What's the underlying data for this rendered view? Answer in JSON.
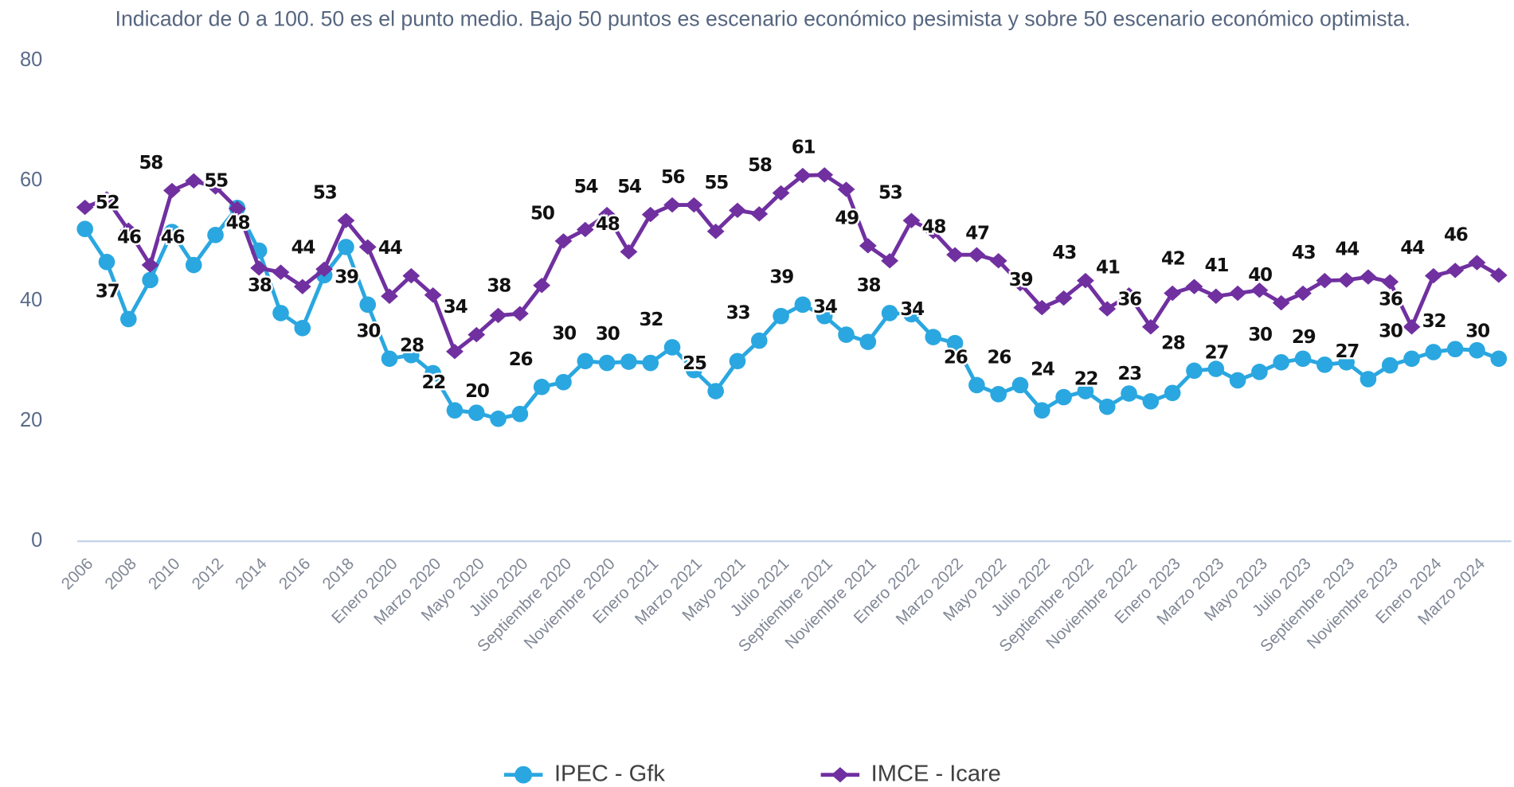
{
  "chart_data": {
    "type": "line",
    "subtitle": "Indicador de 0 a 100. 50 es el punto medio. Bajo 50 puntos es escenario económico pesimista y sobre 50 escenario económico optimista.",
    "categories": [
      "2006",
      null,
      "2008",
      null,
      "2010",
      null,
      "2012",
      null,
      "2014",
      null,
      "2016",
      null,
      "2018",
      null,
      "Enero 2020",
      null,
      "Marzo 2020",
      null,
      "Mayo 2020",
      null,
      "Julio 2020",
      null,
      "Septiembre 2020",
      null,
      "Noviembre 2020",
      null,
      "Enero 2021",
      null,
      "Marzo 2021",
      null,
      "Mayo 2021",
      null,
      "Julio 2021",
      null,
      "Septiembre 2021",
      null,
      "Noviembre 2021",
      null,
      "Enero 2022",
      null,
      "Marzo 2022",
      null,
      "Mayo 2022",
      null,
      "Julio 2022",
      null,
      "Septiembre 2022",
      null,
      "Noviembre 2022",
      null,
      "Enero 2023",
      null,
      "Marzo 2023",
      null,
      "Mayo 2023",
      null,
      "Julio 2023",
      null,
      "Septiembre 2023",
      null,
      "Noviembre 2023",
      null,
      "Enero 2024",
      null,
      "Marzo 2024",
      null
    ],
    "series": [
      {
        "name": "IPEC - Gfk",
        "color": "#2aa7e0",
        "marker": "circle",
        "values": [
          52,
          46.5,
          37,
          43.5,
          51.5,
          46,
          51,
          55.5,
          48.4,
          38,
          35.5,
          44.3,
          49,
          39.4,
          30.4,
          31,
          28,
          21.8,
          21.4,
          20.4,
          21.2,
          25.7,
          26.5,
          30,
          29.7,
          29.9,
          29.7,
          32.3,
          28.5,
          25,
          30,
          33.4,
          37.5,
          39.4,
          37.5,
          34.4,
          33.2,
          38,
          37.8,
          34,
          33,
          26,
          24.5,
          26,
          21.8,
          24,
          25,
          22.4,
          24.6,
          23.3,
          24.7,
          28.4,
          28.7,
          26.8,
          28.2,
          29.8,
          30.4,
          29.4,
          29.8,
          27,
          29.3,
          30.4,
          31.5,
          32,
          31.8,
          30.4
        ],
        "value_labels": [
          null,
          null,
          "37",
          null,
          null,
          "46",
          null,
          null,
          "48",
          "38",
          null,
          "44",
          null,
          "39",
          "30",
          null,
          "28",
          "22",
          null,
          "20",
          null,
          "26",
          null,
          "30",
          null,
          "30",
          null,
          "32",
          null,
          "25",
          null,
          "33",
          null,
          "39",
          null,
          "34",
          null,
          "38",
          null,
          "34",
          null,
          "26",
          null,
          "26",
          null,
          "24",
          null,
          "22",
          null,
          "23",
          null,
          "28",
          null,
          "27",
          null,
          "30",
          null,
          "29",
          null,
          "27",
          null,
          "30",
          null,
          "32",
          null,
          "30"
        ]
      },
      {
        "name": "IMCE - Icare",
        "color": "#7030a0",
        "marker": "diamond",
        "values": [
          55.6,
          57,
          51.8,
          46,
          58.4,
          60,
          59,
          55.4,
          45.5,
          44.8,
          42.4,
          45.3,
          53.4,
          49,
          40.8,
          44.2,
          41,
          31.6,
          34.4,
          37.6,
          37.9,
          42.6,
          50,
          51.9,
          54.4,
          48.2,
          54.4,
          56,
          56,
          51.6,
          55.1,
          54.5,
          58,
          60.9,
          61,
          58.6,
          49.2,
          46.7,
          53.4,
          51.6,
          47.7,
          47.7,
          46.7,
          42.9,
          38.9,
          40.5,
          43.4,
          38.7,
          41,
          35.7,
          41.3,
          42.4,
          40.8,
          41.3,
          41.8,
          39.7,
          41.3,
          43.4,
          43.5,
          44,
          43.2,
          35.7,
          44.2,
          45.1,
          46.4,
          44.3
        ],
        "value_labels": [
          null,
          null,
          "52",
          "46",
          "58",
          null,
          null,
          "55",
          null,
          null,
          null,
          null,
          "53",
          null,
          null,
          "44",
          null,
          null,
          "34",
          null,
          "38",
          null,
          "50",
          null,
          "54",
          "48",
          "54",
          null,
          "56",
          null,
          "55",
          null,
          "58",
          null,
          "61",
          null,
          "49",
          null,
          "53",
          null,
          "48",
          null,
          "47",
          null,
          "39",
          null,
          "43",
          null,
          "41",
          "36",
          null,
          "42",
          null,
          "41",
          null,
          "40",
          null,
          "43",
          null,
          "44",
          null,
          "36",
          "44",
          null,
          "46",
          null
        ]
      }
    ],
    "ylim": [
      0,
      80
    ],
    "yticks": [
      0,
      20,
      40,
      60,
      80
    ],
    "grid": false,
    "legend": "bottom"
  }
}
